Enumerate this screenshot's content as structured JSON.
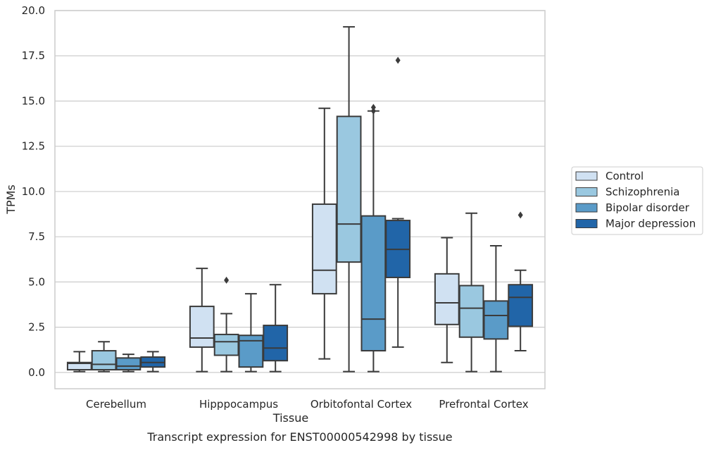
{
  "chart_data": {
    "type": "box",
    "title": "",
    "xlabel": "Tissue",
    "ylabel": "TPMs",
    "caption": "Transcript expression for ENST00000542998 by tissue",
    "ylim": [
      -0.9,
      20.0
    ],
    "yticks": [
      0.0,
      2.5,
      5.0,
      7.5,
      10.0,
      12.5,
      15.0,
      17.5,
      20.0
    ],
    "ytick_labels": [
      "0.0",
      "2.5",
      "5.0",
      "7.5",
      "10.0",
      "12.5",
      "15.0",
      "17.5",
      "20.0"
    ],
    "grid": "horizontal",
    "legend_position": "right",
    "categories": [
      "Cerebellum",
      "Hipppocampus",
      "Orbitofontal Cortex",
      "Prefrontal Cortex"
    ],
    "series": [
      {
        "name": "Control",
        "color": "#d0e1f2",
        "boxes": [
          {
            "whislo": 0.05,
            "q1": 0.15,
            "med": 0.5,
            "q3": 0.55,
            "whishi": 1.15,
            "fliers": []
          },
          {
            "whislo": 0.05,
            "q1": 1.4,
            "med": 1.9,
            "q3": 3.65,
            "whishi": 5.75,
            "fliers": []
          },
          {
            "whislo": 0.75,
            "q1": 4.35,
            "med": 5.65,
            "q3": 9.3,
            "whishi": 14.6,
            "fliers": []
          },
          {
            "whislo": 0.55,
            "q1": 2.65,
            "med": 3.85,
            "q3": 5.45,
            "whishi": 7.45,
            "fliers": []
          }
        ]
      },
      {
        "name": "Schizophrenia",
        "color": "#9ac8e0",
        "boxes": [
          {
            "whislo": 0.05,
            "q1": 0.15,
            "med": 0.45,
            "q3": 1.2,
            "whishi": 1.7,
            "fliers": []
          },
          {
            "whislo": 0.05,
            "q1": 0.95,
            "med": 1.7,
            "q3": 2.1,
            "whishi": 3.25,
            "fliers": [
              5.1
            ]
          },
          {
            "whislo": 0.05,
            "q1": 6.1,
            "med": 8.2,
            "q3": 14.15,
            "whishi": 19.1,
            "fliers": []
          },
          {
            "whislo": 0.05,
            "q1": 1.95,
            "med": 3.55,
            "q3": 4.8,
            "whishi": 8.8,
            "fliers": []
          }
        ]
      },
      {
        "name": "Bipolar disorder",
        "color": "#5a9bc8",
        "boxes": [
          {
            "whislo": 0.05,
            "q1": 0.15,
            "med": 0.35,
            "q3": 0.8,
            "whishi": 1.0,
            "fliers": []
          },
          {
            "whislo": 0.05,
            "q1": 0.3,
            "med": 1.75,
            "q3": 2.05,
            "whishi": 4.35,
            "fliers": []
          },
          {
            "whislo": 0.05,
            "q1": 1.2,
            "med": 2.95,
            "q3": 8.65,
            "whishi": 14.45,
            "fliers": [
              14.45,
              14.65
            ]
          },
          {
            "whislo": 0.05,
            "q1": 1.85,
            "med": 3.15,
            "q3": 3.95,
            "whishi": 7.0,
            "fliers": []
          }
        ]
      },
      {
        "name": "Major depression",
        "color": "#2165a8",
        "boxes": [
          {
            "whislo": 0.05,
            "q1": 0.3,
            "med": 0.55,
            "q3": 0.85,
            "whishi": 1.15,
            "fliers": []
          },
          {
            "whislo": 0.05,
            "q1": 0.65,
            "med": 1.35,
            "q3": 2.6,
            "whishi": 4.85,
            "fliers": []
          },
          {
            "whislo": 1.4,
            "q1": 5.25,
            "med": 6.8,
            "q3": 8.4,
            "whishi": 8.5,
            "fliers": [
              17.25
            ]
          },
          {
            "whislo": 1.2,
            "q1": 2.55,
            "med": 4.15,
            "q3": 4.85,
            "whishi": 5.65,
            "fliers": [
              8.7
            ]
          }
        ]
      }
    ]
  }
}
